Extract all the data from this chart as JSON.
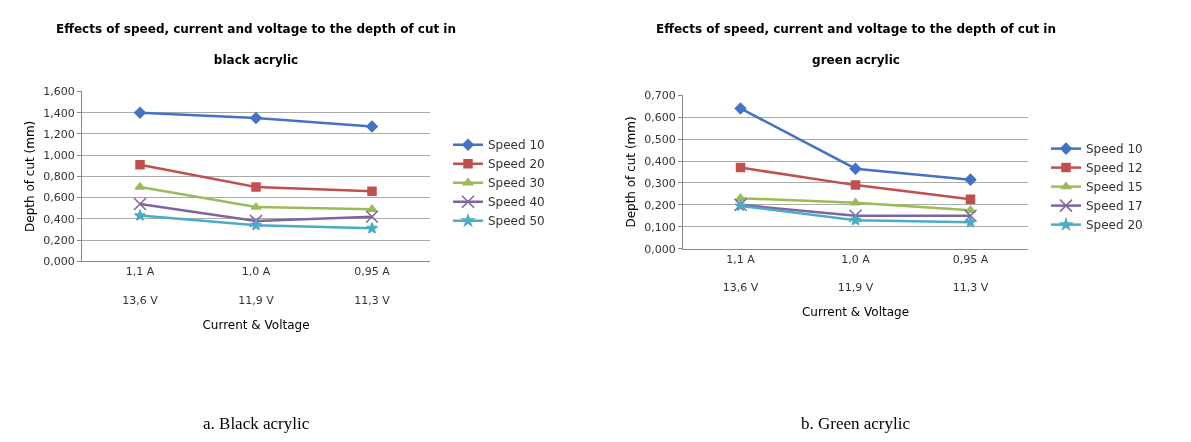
{
  "chart_data": [
    {
      "type": "line",
      "title": "Effects of speed, current and voltage to the depth of cut in\nblack acrylic",
      "xlabel": "Current & Voltage",
      "ylabel": "Depth of cut (mm)",
      "categories": [
        "1,1 A\n13,6 V",
        "1,0 A\n11,9 V",
        "0,95 A\n11,3 V"
      ],
      "series": [
        {
          "name": "Speed 10",
          "color": "#4472c4",
          "marker": "diamond",
          "values": [
            1.4,
            1.35,
            1.27
          ]
        },
        {
          "name": "Speed 20",
          "color": "#c0504d",
          "marker": "square",
          "values": [
            0.91,
            0.7,
            0.66
          ]
        },
        {
          "name": "Speed 30",
          "color": "#9bbb59",
          "marker": "triangle",
          "values": [
            0.7,
            0.51,
            0.49
          ]
        },
        {
          "name": "Speed 40",
          "color": "#8064a2",
          "marker": "cross",
          "values": [
            0.54,
            0.38,
            0.42
          ]
        },
        {
          "name": "Speed 50",
          "color": "#4bacc6",
          "marker": "star",
          "values": [
            0.43,
            0.34,
            0.31
          ]
        }
      ],
      "ylim": [
        0,
        1.6
      ],
      "yticks": [
        {
          "value": 0,
          "label": "0,000"
        },
        {
          "value": 0.2,
          "label": "0,200"
        },
        {
          "value": 0.4,
          "label": "0,400"
        },
        {
          "value": 0.6,
          "label": "0,600"
        },
        {
          "value": 0.8,
          "label": "0,800"
        },
        {
          "value": 1.0,
          "label": "1,000"
        },
        {
          "value": 1.2,
          "label": "1,200"
        },
        {
          "value": 1.4,
          "label": "1,400"
        },
        {
          "value": 1.6,
          "label": "1,600"
        }
      ],
      "grid": "y",
      "legend": "right",
      "annotations": [
        "a. Black acrylic"
      ]
    },
    {
      "type": "line",
      "title": "Effects of speed, current and voltage to the depth of cut in\ngreen acrylic",
      "xlabel": "Current & Voltage",
      "ylabel": "Depth of cut (mm)",
      "categories": [
        "1,1 A\n13,6 V",
        "1,0 A\n11,9 V",
        "0,95 A\n11,3 V"
      ],
      "series": [
        {
          "name": "Speed 10",
          "color": "#4472c4",
          "marker": "diamond",
          "values": [
            0.64,
            0.365,
            0.315
          ]
        },
        {
          "name": "Speed 12",
          "color": "#c0504d",
          "marker": "square",
          "values": [
            0.37,
            0.29,
            0.225
          ]
        },
        {
          "name": "Speed 15",
          "color": "#9bbb59",
          "marker": "triangle",
          "values": [
            0.23,
            0.21,
            0.175
          ]
        },
        {
          "name": "Speed 17",
          "color": "#8064a2",
          "marker": "cross",
          "values": [
            0.2,
            0.15,
            0.15
          ]
        },
        {
          "name": "Speed 20",
          "color": "#4bacc6",
          "marker": "star",
          "values": [
            0.195,
            0.13,
            0.12
          ]
        }
      ],
      "ylim": [
        0,
        0.7
      ],
      "yticks": [
        {
          "value": 0,
          "label": "0,000"
        },
        {
          "value": 0.1,
          "label": "0,100"
        },
        {
          "value": 0.2,
          "label": "0,200"
        },
        {
          "value": 0.3,
          "label": "0,300"
        },
        {
          "value": 0.4,
          "label": "0,400"
        },
        {
          "value": 0.5,
          "label": "0,500"
        },
        {
          "value": 0.6,
          "label": "0,600"
        },
        {
          "value": 0.7,
          "label": "0,700"
        }
      ],
      "grid": "y",
      "legend": "right",
      "annotations": [
        "b. Green acrylic"
      ]
    }
  ]
}
